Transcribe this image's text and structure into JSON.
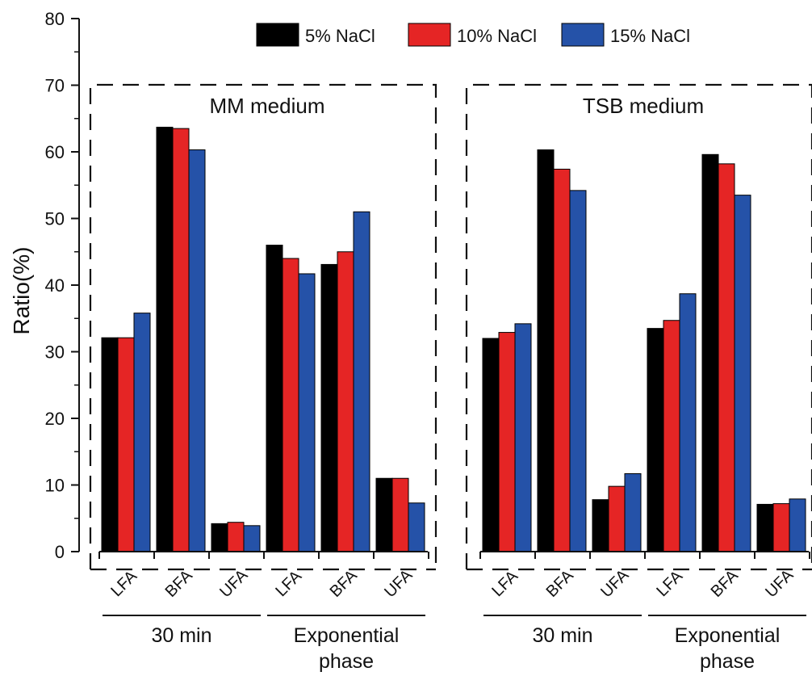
{
  "chart_data": {
    "type": "bar",
    "title": "",
    "xlabel": "",
    "ylabel": "Ratio(%)",
    "ylim": [
      0,
      80
    ],
    "yticks": [
      0,
      10,
      20,
      30,
      40,
      50,
      60,
      70,
      80
    ],
    "grid": false,
    "legend_position": "top",
    "series": [
      {
        "name": "5% NaCl",
        "color": "#000000"
      },
      {
        "name": "10% NaCl",
        "color": "#e52525"
      },
      {
        "name": "15% NaCl",
        "color": "#2552a8"
      }
    ],
    "panels": [
      {
        "label": "MM medium",
        "groups": [
          {
            "label": "30 min",
            "categories": [
              "LFA",
              "BFA",
              "UFA"
            ],
            "values": [
              [
                32.1,
                32.1,
                35.8
              ],
              [
                63.7,
                63.5,
                60.3
              ],
              [
                4.2,
                4.4,
                3.9
              ]
            ]
          },
          {
            "label": "Exponential phase",
            "categories": [
              "LFA",
              "BFA",
              "UFA"
            ],
            "values": [
              [
                46.0,
                44.0,
                41.7
              ],
              [
                43.1,
                45.0,
                51.0
              ],
              [
                11.0,
                11.0,
                7.3
              ]
            ]
          }
        ]
      },
      {
        "label": "TSB medium",
        "groups": [
          {
            "label": "30 min",
            "categories": [
              "LFA",
              "BFA",
              "UFA"
            ],
            "values": [
              [
                32.0,
                32.9,
                34.2
              ],
              [
                60.3,
                57.4,
                54.2
              ],
              [
                7.8,
                9.8,
                11.7
              ]
            ]
          },
          {
            "label": "Exponential phase",
            "categories": [
              "LFA",
              "BFA",
              "UFA"
            ],
            "values": [
              [
                33.5,
                34.7,
                38.7
              ],
              [
                59.6,
                58.2,
                53.5
              ],
              [
                7.1,
                7.2,
                7.9
              ]
            ]
          }
        ]
      }
    ]
  }
}
